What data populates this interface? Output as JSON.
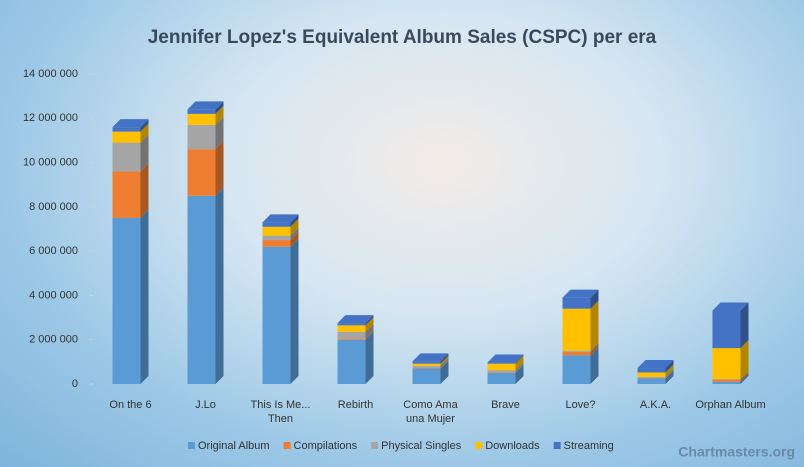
{
  "chart_data": {
    "type": "stacked-bar-3d",
    "title": "Jennifer Lopez's Equivalent Album Sales (CSPC) per era",
    "categories": [
      "On the 6",
      "J.Lo",
      "This Is Me... Then",
      "Rebirth",
      "Como Ama una Mujer",
      "Brave",
      "Love?",
      "A.K.A.",
      "Orphan Album"
    ],
    "series": [
      {
        "name": "Original Album",
        "color": "#5b9bd5",
        "values": [
          7500000,
          8500000,
          6200000,
          2000000,
          700000,
          500000,
          1300000,
          250000,
          100000
        ]
      },
      {
        "name": "Compilations",
        "color": "#ed7d31",
        "values": [
          2100000,
          2100000,
          300000,
          50000,
          20000,
          20000,
          150000,
          20000,
          100000
        ]
      },
      {
        "name": "Physical Singles",
        "color": "#a5a5a5",
        "values": [
          1300000,
          1100000,
          200000,
          300000,
          100000,
          100000,
          50000,
          50000,
          20000
        ]
      },
      {
        "name": "Downloads",
        "color": "#ffc000",
        "values": [
          500000,
          500000,
          400000,
          300000,
          100000,
          300000,
          1900000,
          200000,
          1400000
        ]
      },
      {
        "name": "Streaming",
        "color": "#4472c4",
        "values": [
          200000,
          200000,
          200000,
          100000,
          100000,
          50000,
          500000,
          200000,
          1700000
        ]
      }
    ],
    "ylim": [
      0,
      14000000
    ],
    "yticks": [
      0,
      {
        "value": 2000000,
        "label": "2 000 000"
      },
      {
        "value": 4000000,
        "label": "4 000 000"
      },
      {
        "value": 6000000,
        "label": "6 000 000"
      },
      {
        "value": 8000000,
        "label": "8 000 000"
      },
      {
        "value": 10000000,
        "label": "10 000 000"
      },
      {
        "value": 12000000,
        "label": "12 000 000"
      },
      {
        "value": 14000000,
        "label": "14 000 000"
      }
    ],
    "grid": false,
    "legend": "bottom",
    "source": "Chartmasters.org"
  }
}
